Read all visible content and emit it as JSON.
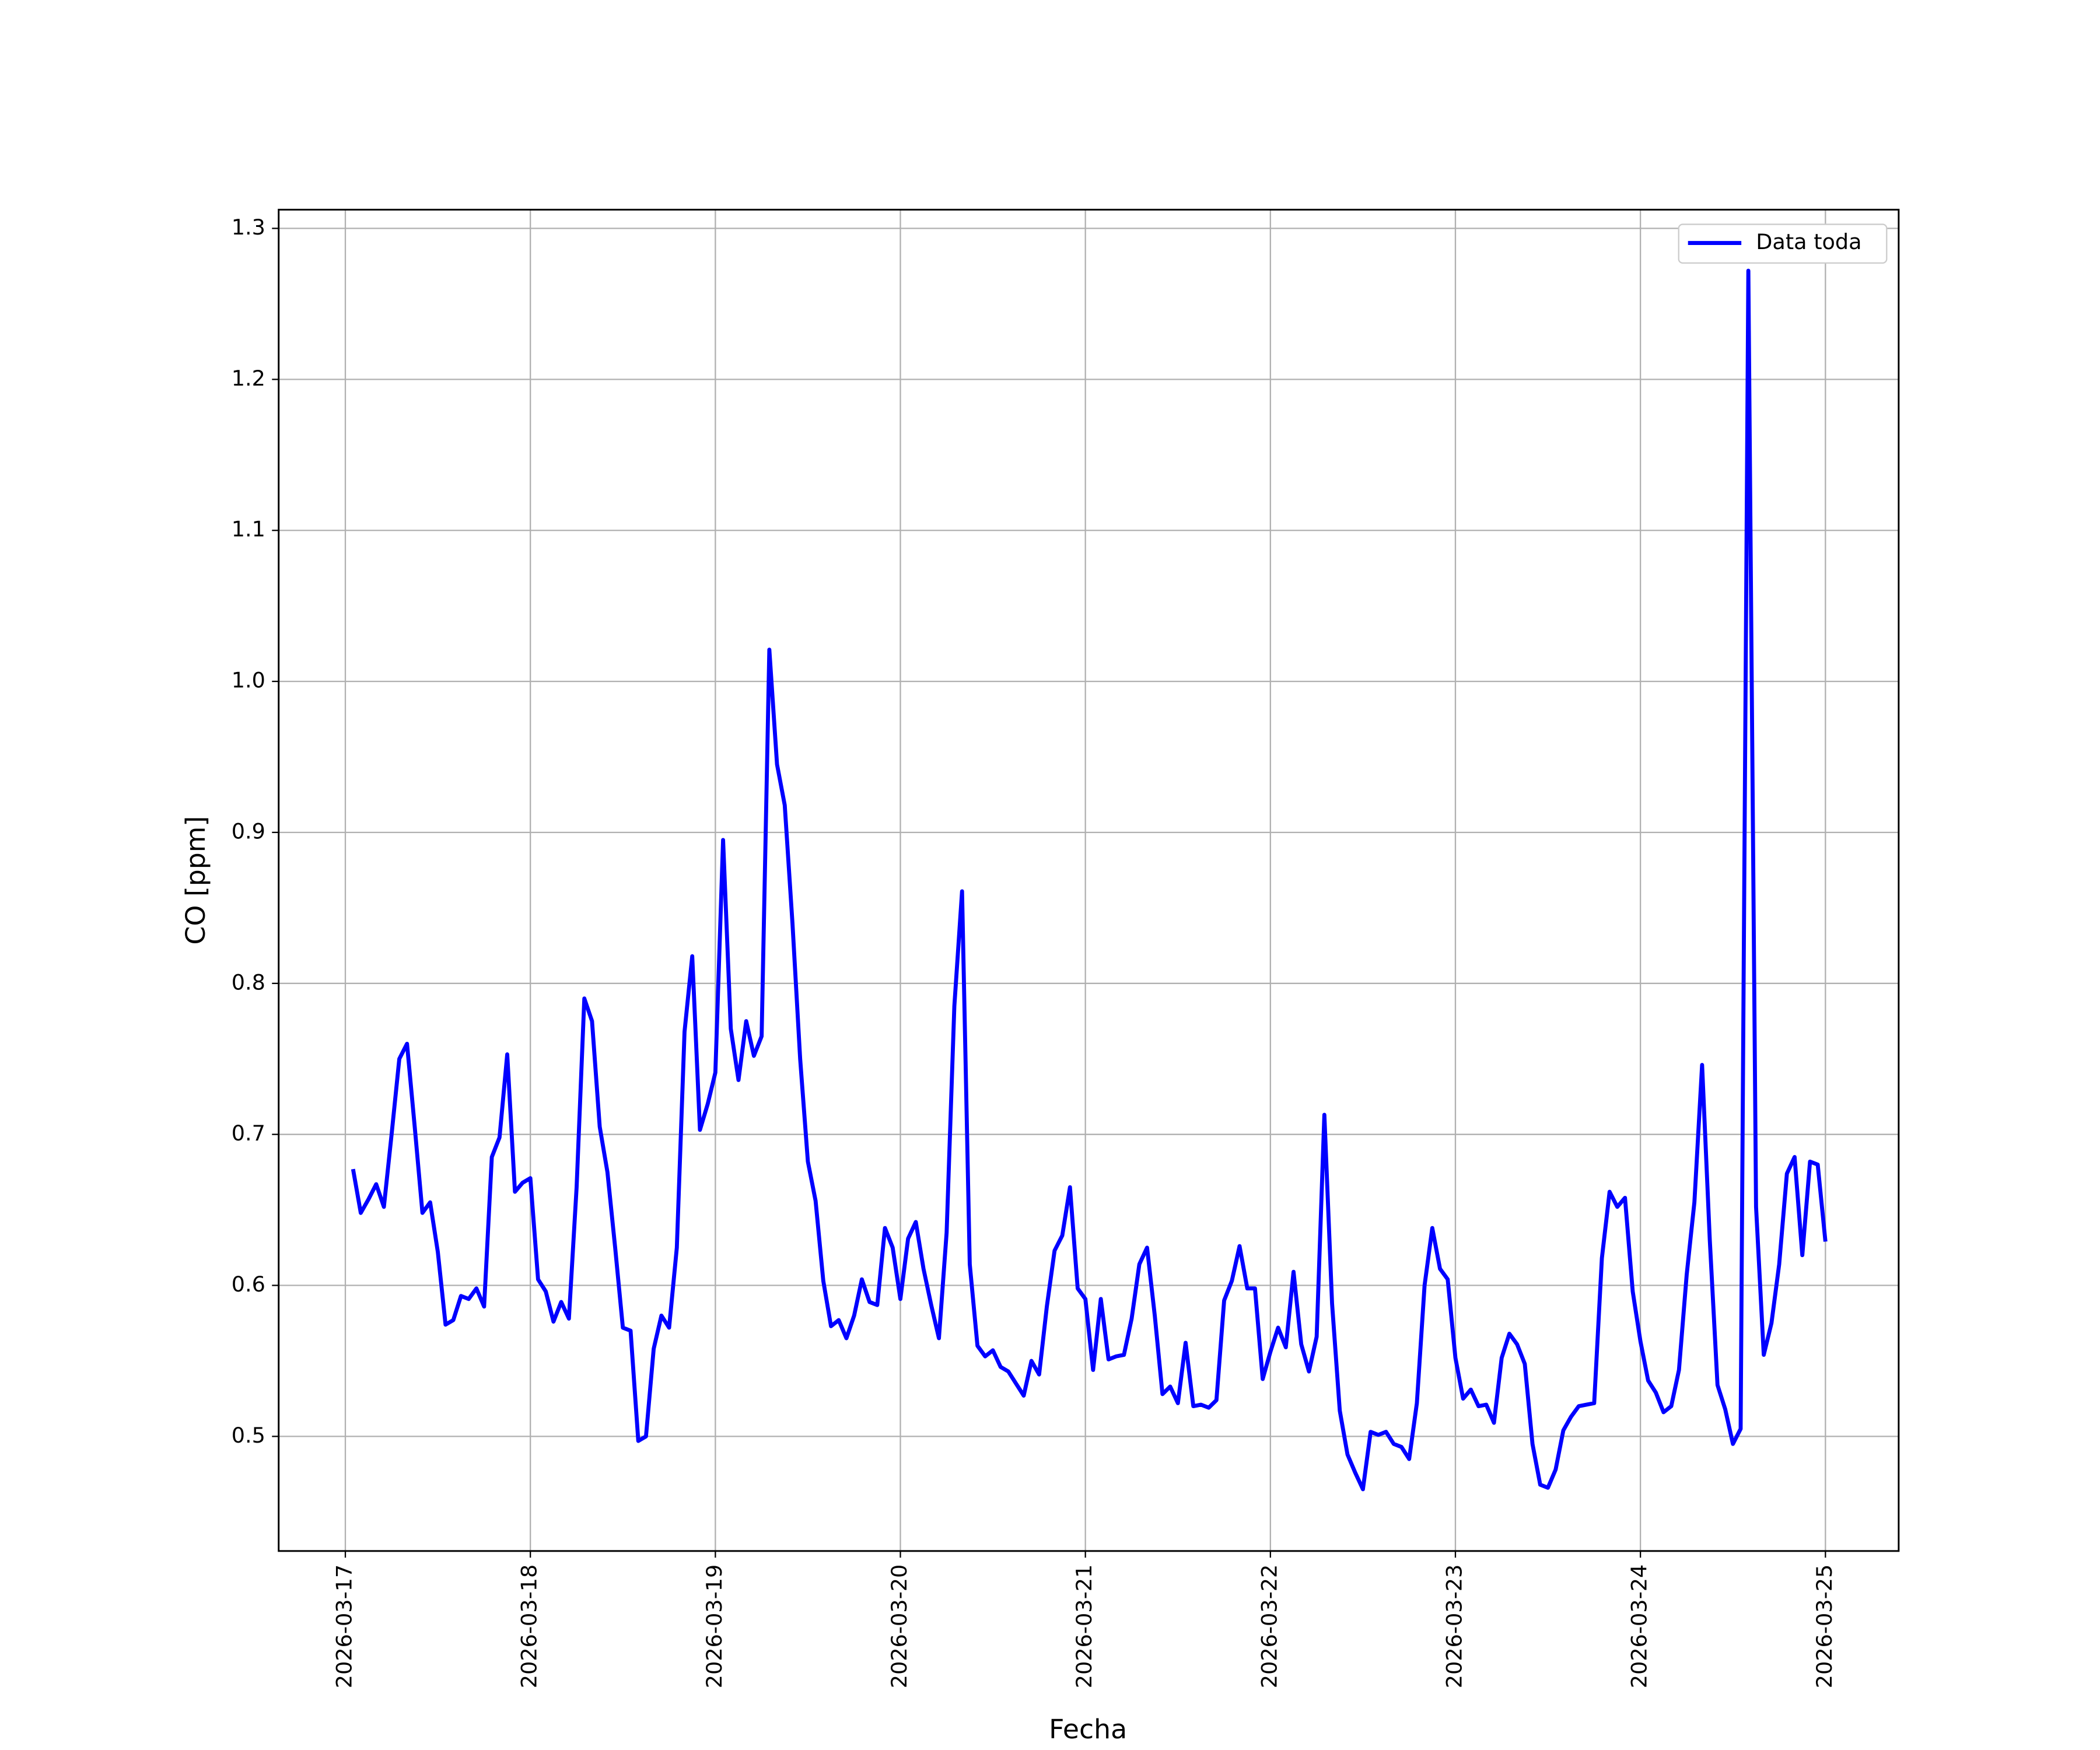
{
  "chart_data": {
    "type": "line",
    "xlabel": "Fecha",
    "ylabel": "CO [ppm]",
    "x": [
      1,
      2,
      3,
      4,
      5,
      6,
      7,
      8,
      9,
      10,
      11,
      12,
      13,
      14,
      15,
      16,
      17,
      18,
      19,
      20,
      21,
      22,
      23,
      24,
      25,
      26,
      27,
      28,
      29,
      30,
      31,
      32,
      33,
      34,
      35,
      36,
      37,
      38,
      39,
      40,
      41,
      42,
      43,
      44,
      45,
      46,
      47,
      48,
      49,
      50,
      51,
      52,
      53,
      54,
      55,
      56,
      57,
      58,
      59,
      60,
      61,
      62,
      63,
      64,
      65,
      66,
      67,
      68,
      69,
      70,
      71,
      72,
      73,
      74,
      75,
      76,
      77,
      78,
      79,
      80,
      81,
      82,
      83,
      84,
      85,
      86,
      87,
      88,
      89,
      90,
      91,
      92,
      93,
      94,
      95,
      96,
      97,
      98,
      99,
      100,
      101,
      102,
      103,
      104,
      105,
      106,
      107,
      108,
      109,
      110,
      111,
      112,
      113,
      114,
      115,
      116,
      117,
      118,
      119,
      120,
      121,
      122,
      123,
      124,
      125,
      126,
      127,
      128,
      129,
      130,
      131,
      132,
      133,
      134,
      135,
      136,
      137,
      138,
      139,
      140,
      141,
      142,
      143,
      144,
      145,
      146,
      147,
      148,
      149,
      150,
      151,
      152,
      153,
      154,
      155,
      156,
      157,
      158,
      159,
      160,
      161,
      162,
      163,
      164,
      165,
      166,
      167,
      168,
      169,
      170,
      171,
      172,
      173,
      174,
      175,
      176,
      177,
      178,
      179,
      180,
      181,
      182,
      183,
      184,
      185,
      186,
      187,
      188,
      189,
      190,
      191,
      192
    ],
    "series": [
      {
        "name": "Data toda",
        "color": "#0000ff",
        "values": [
          0.677,
          0.648,
          0.657,
          0.667,
          0.652,
          0.7,
          0.75,
          0.76,
          0.705,
          0.648,
          0.655,
          0.622,
          0.574,
          0.577,
          0.593,
          0.591,
          0.598,
          0.586,
          0.685,
          0.698,
          0.753,
          0.662,
          0.668,
          0.671,
          0.604,
          0.596,
          0.576,
          0.589,
          0.578,
          0.665,
          0.79,
          0.775,
          0.705,
          0.675,
          0.625,
          0.572,
          0.57,
          0.497,
          0.5,
          0.558,
          0.58,
          0.572,
          0.625,
          0.768,
          0.818,
          0.703,
          0.72,
          0.741,
          0.895,
          0.77,
          0.736,
          0.775,
          0.752,
          0.765,
          1.021,
          0.945,
          0.918,
          0.84,
          0.75,
          0.682,
          0.656,
          0.603,
          0.573,
          0.577,
          0.565,
          0.58,
          0.604,
          0.589,
          0.587,
          0.638,
          0.625,
          0.591,
          0.631,
          0.642,
          0.611,
          0.587,
          0.565,
          0.635,
          0.785,
          0.861,
          0.614,
          0.56,
          0.553,
          0.557,
          0.546,
          0.543,
          0.535,
          0.527,
          0.55,
          0.541,
          0.586,
          0.623,
          0.633,
          0.665,
          0.598,
          0.591,
          0.544,
          0.591,
          0.551,
          0.553,
          0.554,
          0.578,
          0.614,
          0.625,
          0.58,
          0.528,
          0.533,
          0.522,
          0.562,
          0.52,
          0.521,
          0.519,
          0.524,
          0.59,
          0.603,
          0.626,
          0.598,
          0.598,
          0.538,
          0.556,
          0.572,
          0.559,
          0.609,
          0.561,
          0.543,
          0.566,
          0.713,
          0.588,
          0.517,
          0.488,
          0.476,
          0.465,
          0.503,
          0.501,
          0.503,
          0.495,
          0.493,
          0.485,
          0.522,
          0.6,
          0.638,
          0.611,
          0.604,
          0.552,
          0.525,
          0.531,
          0.52,
          0.521,
          0.509,
          0.552,
          0.568,
          0.561,
          0.548,
          0.495,
          0.468,
          0.466,
          0.478,
          0.504,
          0.513,
          0.52,
          0.521,
          0.522,
          0.618,
          0.662,
          0.652,
          0.658,
          0.596,
          0.563,
          0.537,
          0.529,
          0.516,
          0.52,
          0.544,
          0.607,
          0.655,
          0.746,
          0.63,
          0.534,
          0.518,
          0.495,
          0.505,
          1.272,
          0.652,
          0.554,
          0.575,
          0.614,
          0.674,
          0.685,
          0.62,
          0.682,
          0.68,
          0.629
        ]
      }
    ],
    "xlim": [
      -8.65,
      201.5
    ],
    "xticks": [
      {
        "value": 0,
        "label": "2026-03-17"
      },
      {
        "value": 24,
        "label": "2026-03-18"
      },
      {
        "value": 48,
        "label": "2026-03-19"
      },
      {
        "value": 72,
        "label": "2026-03-20"
      },
      {
        "value": 96,
        "label": "2026-03-21"
      },
      {
        "value": 120,
        "label": "2026-03-22"
      },
      {
        "value": 144,
        "label": "2026-03-23"
      },
      {
        "value": 168,
        "label": "2026-03-24"
      },
      {
        "value": 192,
        "label": "2026-03-25"
      }
    ],
    "ylim": [
      0.4241,
      1.3124
    ],
    "yticks": [
      {
        "value": 0.5,
        "label": "0.5"
      },
      {
        "value": 0.6,
        "label": "0.6"
      },
      {
        "value": 0.7,
        "label": "0.7"
      },
      {
        "value": 0.8,
        "label": "0.8"
      },
      {
        "value": 0.9,
        "label": "0.9"
      },
      {
        "value": 1.0,
        "label": "1.0"
      },
      {
        "value": 1.1,
        "label": "1.1"
      },
      {
        "value": 1.2,
        "label": "1.2"
      },
      {
        "value": 1.3,
        "label": "1.3"
      }
    ],
    "grid": true,
    "legend": "upper right"
  }
}
